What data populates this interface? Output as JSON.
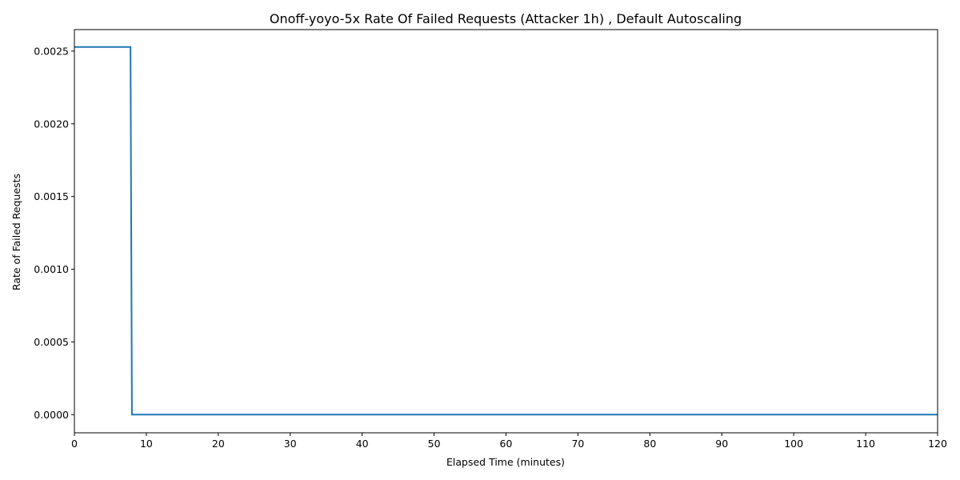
{
  "chart_data": {
    "type": "line",
    "title": "Onoff-yoyo-5x Rate Of Failed Requests (Attacker 1h) , Default Autoscaling",
    "xlabel": "Elapsed Time (minutes)",
    "ylabel": "Rate of Failed Requests",
    "xlim": [
      0,
      120
    ],
    "ylim": [
      -0.000125,
      0.002648
    ],
    "xticks": [
      0,
      10,
      20,
      30,
      40,
      50,
      60,
      70,
      80,
      90,
      100,
      110,
      120
    ],
    "xtick_labels": [
      "0",
      "10",
      "20",
      "30",
      "40",
      "50",
      "60",
      "70",
      "80",
      "90",
      "100",
      "110",
      "120"
    ],
    "yticks": [
      0,
      0.0005,
      0.001,
      0.0015,
      0.002,
      0.0025
    ],
    "ytick_labels": [
      "0.0000",
      "0.0005",
      "0.0010",
      "0.0015",
      "0.0020",
      "0.0025"
    ],
    "grid": false,
    "series_color": "#1f77b4",
    "series": [
      {
        "x": [
          0,
          7.8,
          8.0,
          120
        ],
        "y": [
          0.002528,
          0.002528,
          0.0,
          0.0
        ]
      }
    ]
  }
}
